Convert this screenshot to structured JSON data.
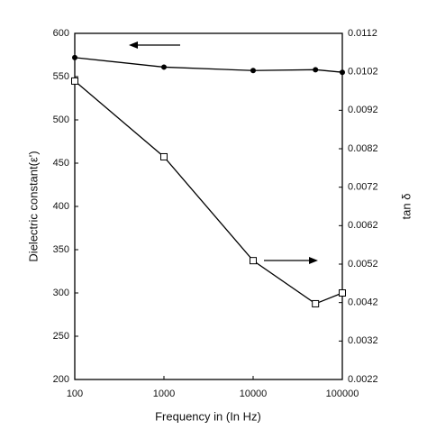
{
  "chart_data": {
    "type": "line",
    "xlabel": "Frequency in (In Hz)",
    "ylabel": "Dielectric constant(ε')",
    "y2label": "tan δ",
    "xscale": "log",
    "x": [
      100,
      1000,
      10000,
      50000,
      100000
    ],
    "xlim": [
      100,
      100000
    ],
    "xticks": [
      100,
      1000,
      10000,
      100000
    ],
    "ylim": [
      200,
      600
    ],
    "yticks": [
      200,
      250,
      300,
      350,
      400,
      450,
      500,
      550,
      600
    ],
    "y2lim": [
      0.0022,
      0.0112
    ],
    "y2ticks": [
      0.0022,
      0.0032,
      0.0042,
      0.0052,
      0.0062,
      0.0072,
      0.0082,
      0.0092,
      0.0102,
      0.0112
    ],
    "series": [
      {
        "color": "#000000",
        "marker": "circle",
        "values": [
          572,
          561,
          557,
          558,
          555
        ]
      },
      {
        "color": "#000000",
        "marker": "square",
        "axis": "y2",
        "values": [
          0.00996,
          0.00799,
          0.00529,
          0.00417,
          0.00445
        ]
      }
    ]
  }
}
